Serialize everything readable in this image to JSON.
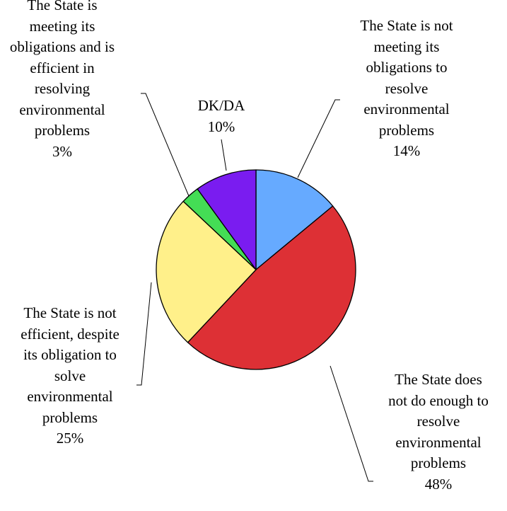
{
  "chart_data": {
    "type": "pie",
    "title": "",
    "start_angle_deg": 0,
    "direction": "clockwise",
    "slices": [
      {
        "label_lines": [
          "The State is not",
          "meeting its",
          "obligations to",
          "resolve",
          "environmental",
          "problems"
        ],
        "value": 14,
        "value_label": "14%",
        "color": "#66aaff"
      },
      {
        "label_lines": [
          "The State does",
          "not do enough to",
          "resolve",
          "environmental",
          "problems"
        ],
        "value": 48,
        "value_label": "48%",
        "color": "#dd3035"
      },
      {
        "label_lines": [
          "The State is not",
          "efficient, despite",
          "its obligation to",
          "solve",
          "environmental",
          "problems"
        ],
        "value": 25,
        "value_label": "25%",
        "color": "#fff08a"
      },
      {
        "label_lines": [
          "The State is",
          "meeting its",
          "obligations and is",
          "efficient in",
          "resolving",
          "environmental",
          "problems"
        ],
        "value": 3,
        "value_label": "3%",
        "color": "#44dd55"
      },
      {
        "label_lines": [
          "DK/DA"
        ],
        "value": 10,
        "value_label": "10%",
        "color": "#7a1cf0"
      }
    ]
  }
}
